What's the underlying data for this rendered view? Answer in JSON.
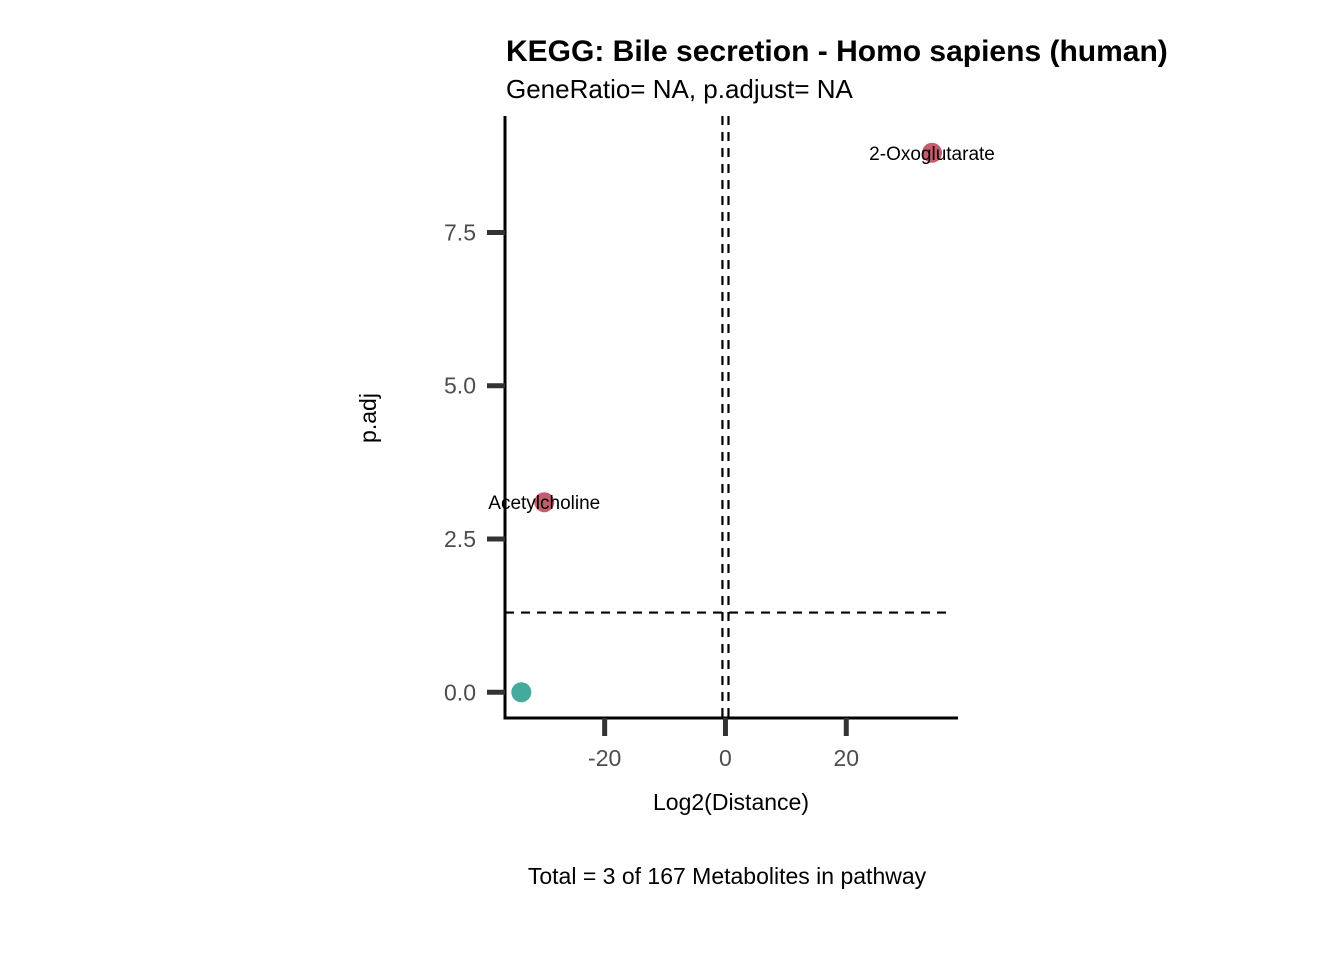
{
  "chart_data": {
    "type": "scatter",
    "title": "KEGG: Bile secretion - Homo sapiens (human)",
    "subtitle": "GeneRatio= NA, p.adjust= NA",
    "xlabel": "Log2(Distance)",
    "ylabel": "p.adj",
    "caption": "Total = 3 of 167 Metabolites in pathway",
    "xlim": [
      -36.5,
      38.5
    ],
    "ylim": [
      -0.42,
      9.4
    ],
    "x_ticks": [
      {
        "value": -20,
        "label": "-20"
      },
      {
        "value": 0,
        "label": "0"
      },
      {
        "value": 20,
        "label": "20"
      }
    ],
    "y_ticks": [
      {
        "value": 0,
        "label": "0.0"
      },
      {
        "value": 2.5,
        "label": "2.5"
      },
      {
        "value": 5,
        "label": "5.0"
      },
      {
        "value": 7.5,
        "label": "7.5"
      }
    ],
    "reference_lines": {
      "vertical": [
        -0.5,
        0.5
      ],
      "horizontal": [
        1.3
      ]
    },
    "points": [
      {
        "x": 34.2,
        "y": 8.8,
        "label": "2-Oxoglutarate",
        "color": "#c45d6e"
      },
      {
        "x": -30.0,
        "y": 3.1,
        "label": "Acetylcholine",
        "color": "#c45d6e"
      },
      {
        "x": -33.8,
        "y": 0.0,
        "label": "",
        "color": "#44ab9c"
      }
    ],
    "grid": false,
    "legend": "none"
  }
}
